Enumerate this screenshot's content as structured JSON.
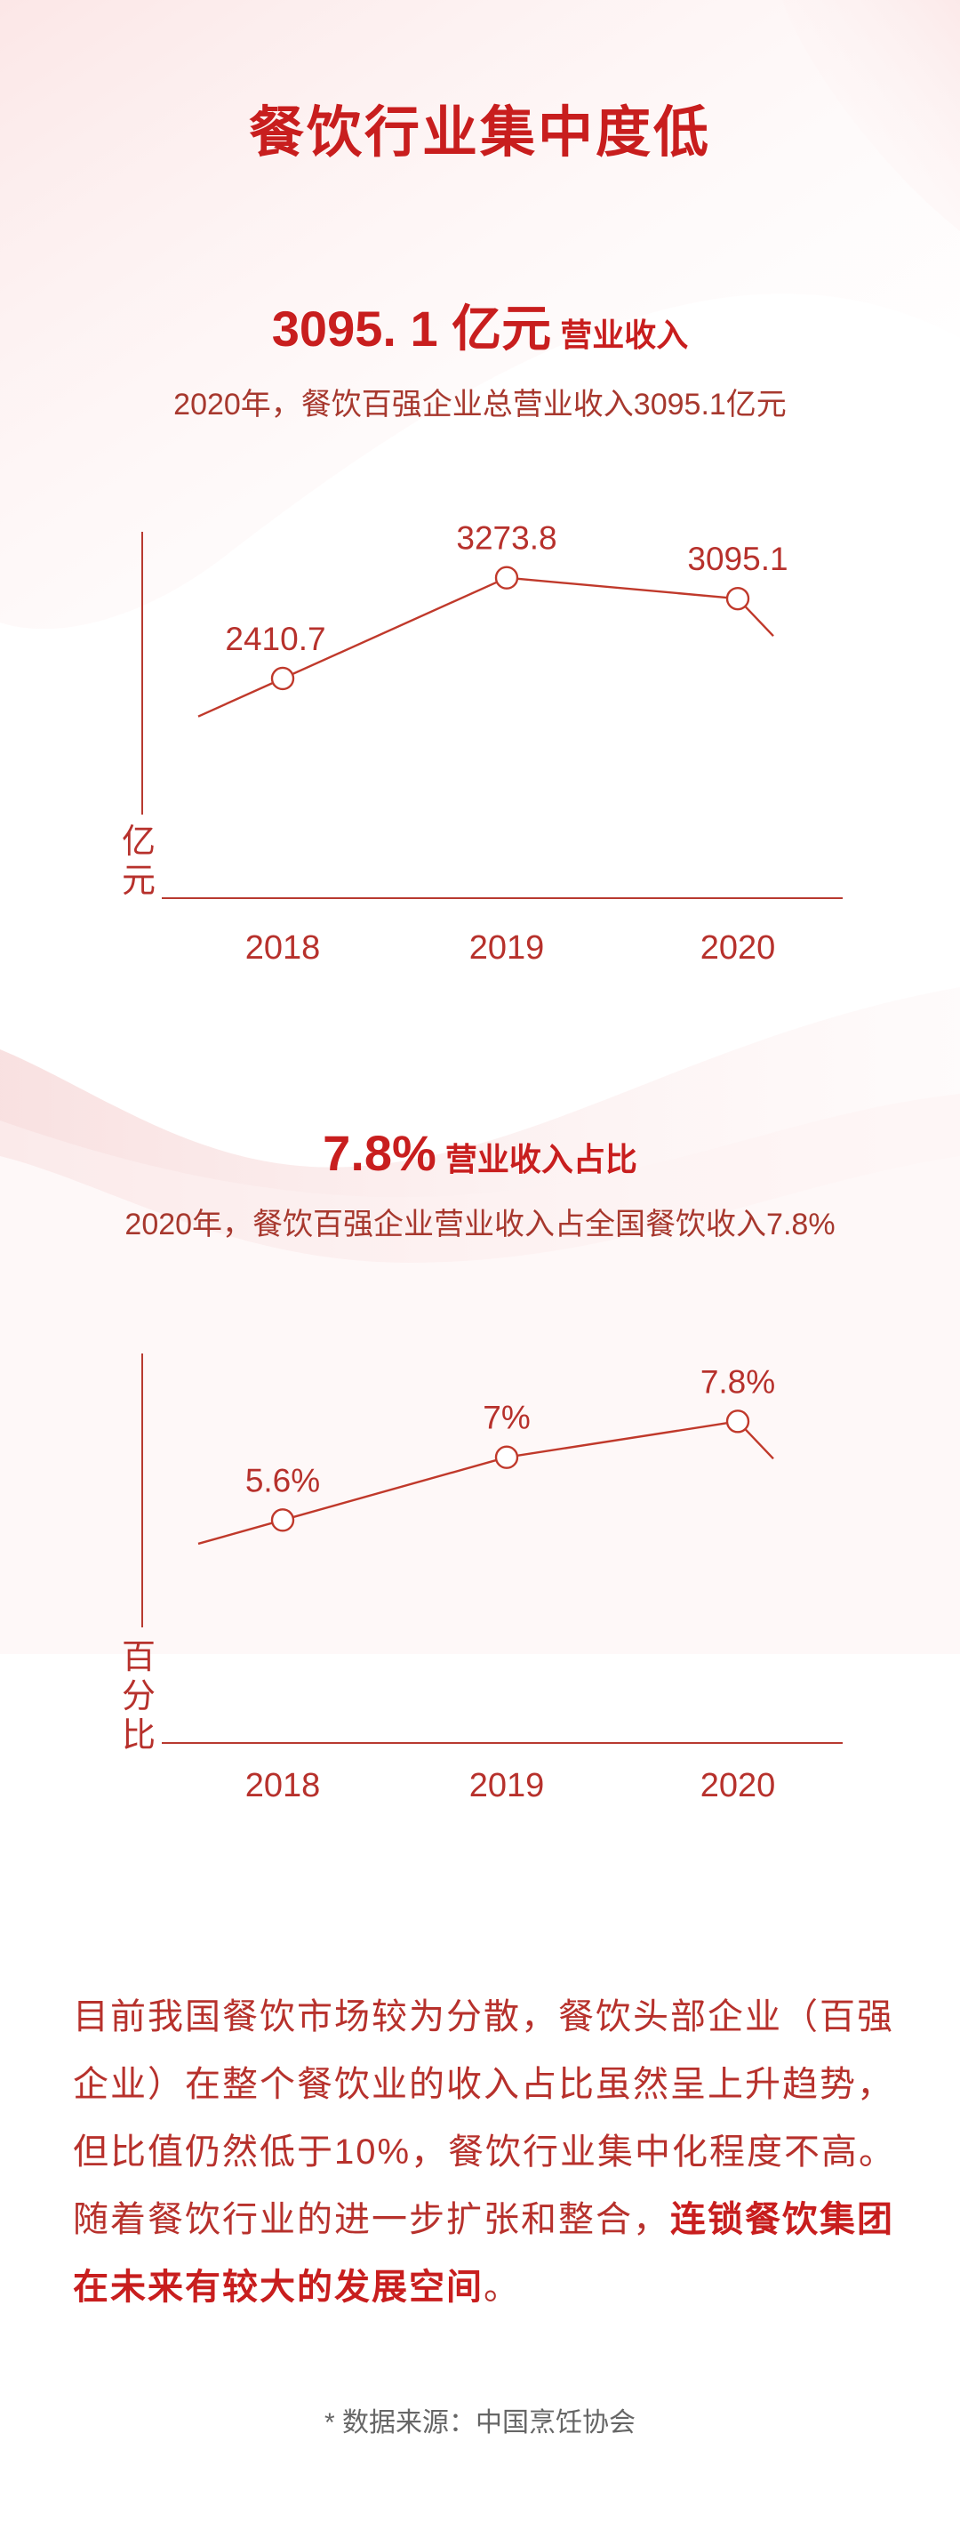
{
  "colors": {
    "title": "#c81e1e",
    "accent": "#b7312c",
    "line": "#c0392b",
    "caption": "#a7382e",
    "axis": "#b83a30",
    "source": "#666666"
  },
  "title": "餐饮行业集中度低",
  "sections": [
    {
      "stat_value": "3095. 1 亿元",
      "stat_label": "营业收入",
      "caption": "2020年，餐饮百强企业总营业收入3095.1亿元",
      "unit": [
        "亿",
        "元"
      ]
    },
    {
      "stat_value": "7.8%",
      "stat_label": "营业收入占比",
      "caption": "2020年，餐饮百强企业营业收入占全国餐饮收入7.8%",
      "unit": [
        "百",
        "分",
        "比"
      ]
    }
  ],
  "chart_data": [
    {
      "type": "line",
      "x": [
        "2018",
        "2019",
        "2020"
      ],
      "values": [
        2410.7,
        3273.8,
        3095.1
      ],
      "data_labels": [
        "2410.7",
        "3273.8",
        "3095.1"
      ],
      "ylabel": "亿元",
      "ylim": [
        1900,
        3500
      ],
      "grid": false
    },
    {
      "type": "line",
      "x": [
        "2018",
        "2019",
        "2020"
      ],
      "values": [
        5.6,
        7,
        7.8
      ],
      "data_labels": [
        "5.6%",
        "7%",
        "7.8%"
      ],
      "ylabel": "百分比",
      "ylim": [
        4.1,
        8.6
      ],
      "grid": false
    }
  ],
  "paragraph": {
    "text": "目前我国餐饮市场较为分散，餐饮头部企业（百强企业）在整个餐饮业的收入占比虽然呈上升趋势，但比值仍然低于10%，餐饮行业集中化程度不高。随着餐饮行业的进一步扩张和整合，",
    "highlight": "连锁餐饮集团在未来有较大的发展空间",
    "end": "。"
  },
  "source": "* 数据来源：中国烹饪协会"
}
